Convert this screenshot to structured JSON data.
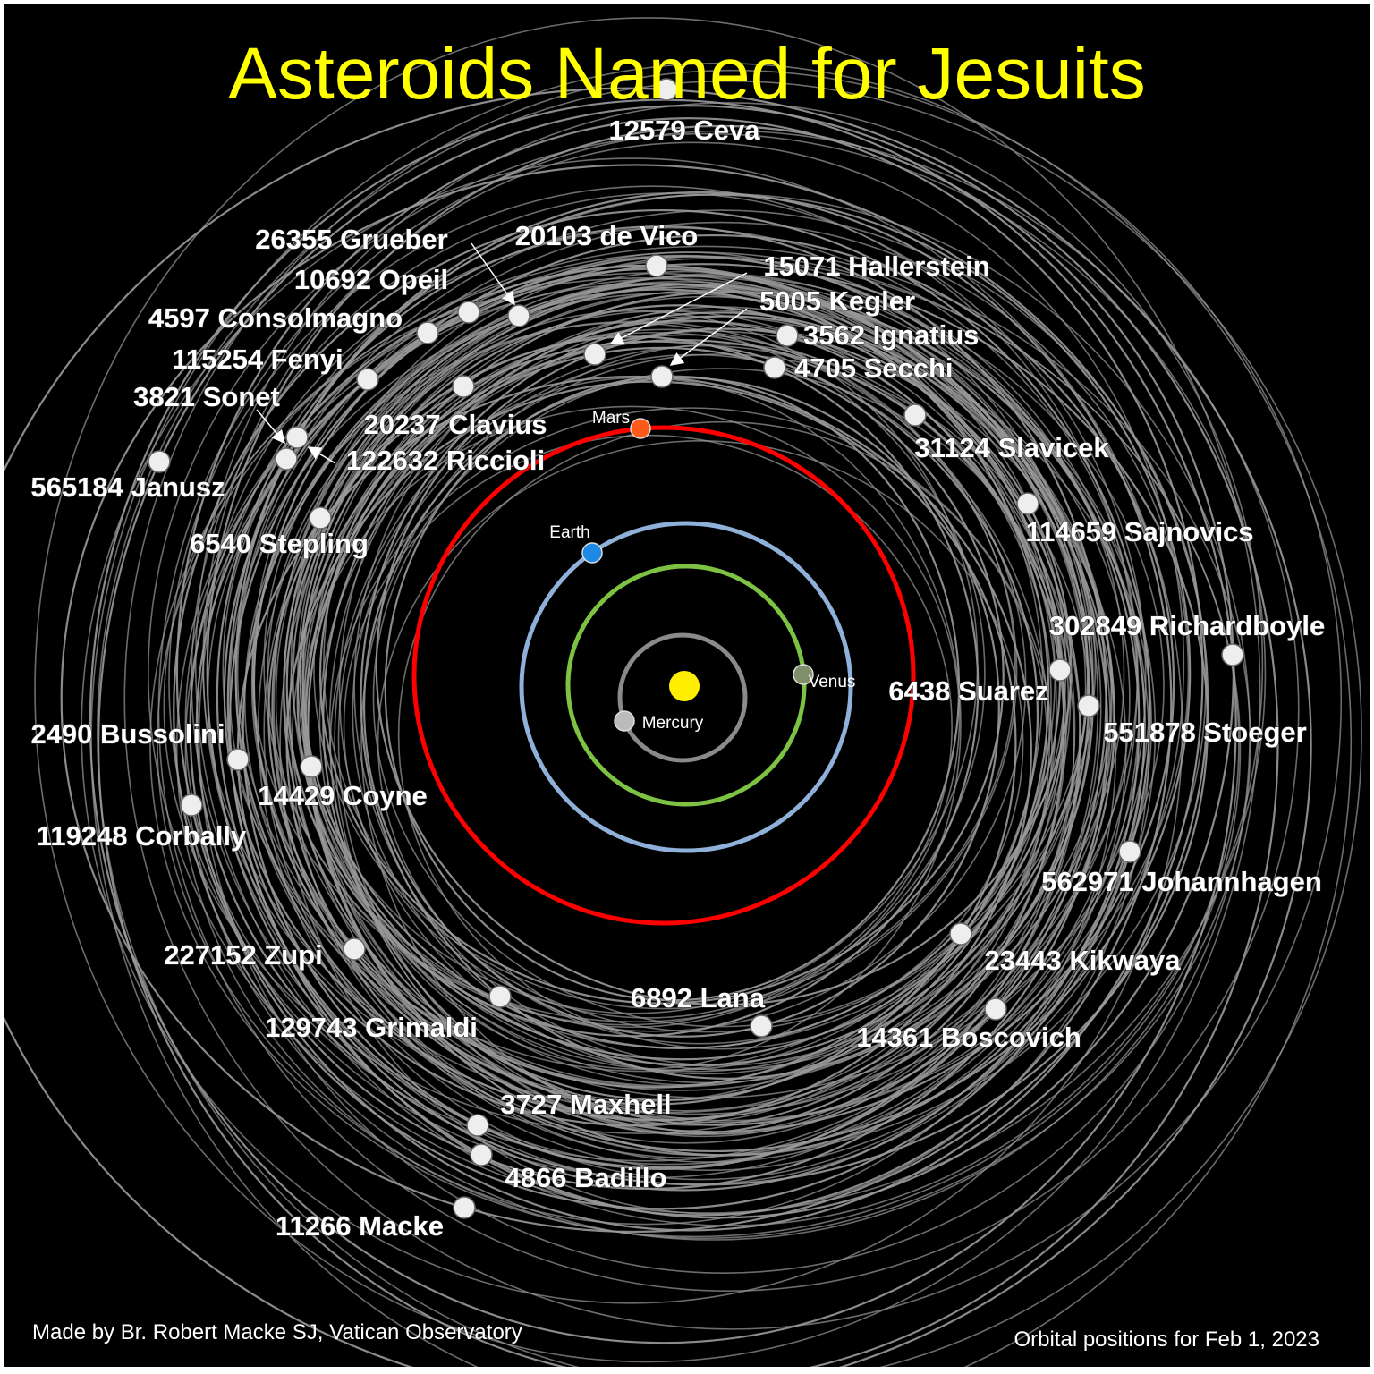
{
  "title": "Asteroids Named for Jesuits",
  "footer": {
    "credit": "Made by Br. Robert Macke SJ, Vatican Observatory",
    "date": "Orbital positions for Feb 1, 2023"
  },
  "colors": {
    "title": "#ffff00",
    "sun": "#ffee00",
    "mercury_orbit": "#8a8a8a",
    "venus_orbit": "#7dc242",
    "earth_orbit": "#8fb0d8",
    "mars_orbit": "#ff0000",
    "asteroid_orbit": "#9a9a9a",
    "asteroid": "#eeeeee"
  },
  "planets": [
    {
      "name": "Mercury"
    },
    {
      "name": "Venus"
    },
    {
      "name": "Earth"
    },
    {
      "name": "Mars"
    }
  ],
  "asteroids": [
    {
      "label": "12579 Ceva"
    },
    {
      "label": "20103 de Vico"
    },
    {
      "label": "26355 Grueber"
    },
    {
      "label": "10692 Opeil"
    },
    {
      "label": "4597 Consolmagno"
    },
    {
      "label": "115254 Fenyi"
    },
    {
      "label": "3821 Sonet"
    },
    {
      "label": "122632 Riccioli"
    },
    {
      "label": "20237 Clavius"
    },
    {
      "label": "565184 Janusz"
    },
    {
      "label": "6540 Stepling"
    },
    {
      "label": "15071 Hallerstein"
    },
    {
      "label": "5005 Kegler"
    },
    {
      "label": "3562 Ignatius"
    },
    {
      "label": "4705 Secchi"
    },
    {
      "label": "31124 Slavicek"
    },
    {
      "label": "114659 Sajnovics"
    },
    {
      "label": "302849 Richardboyle"
    },
    {
      "label": "6438 Suarez"
    },
    {
      "label": "551878 Stoeger"
    },
    {
      "label": "562971 Johannhagen"
    },
    {
      "label": "23443 Kikwaya"
    },
    {
      "label": "14361 Boscovich"
    },
    {
      "label": "6892 Lana"
    },
    {
      "label": "129743 Grimaldi"
    },
    {
      "label": "227152 Zupi"
    },
    {
      "label": "3727 Maxhell"
    },
    {
      "label": "4866 Badillo"
    },
    {
      "label": "11266 Macke"
    },
    {
      "label": "2490 Bussolini"
    },
    {
      "label": "14429 Coyne"
    },
    {
      "label": "119248 Corbally"
    }
  ]
}
